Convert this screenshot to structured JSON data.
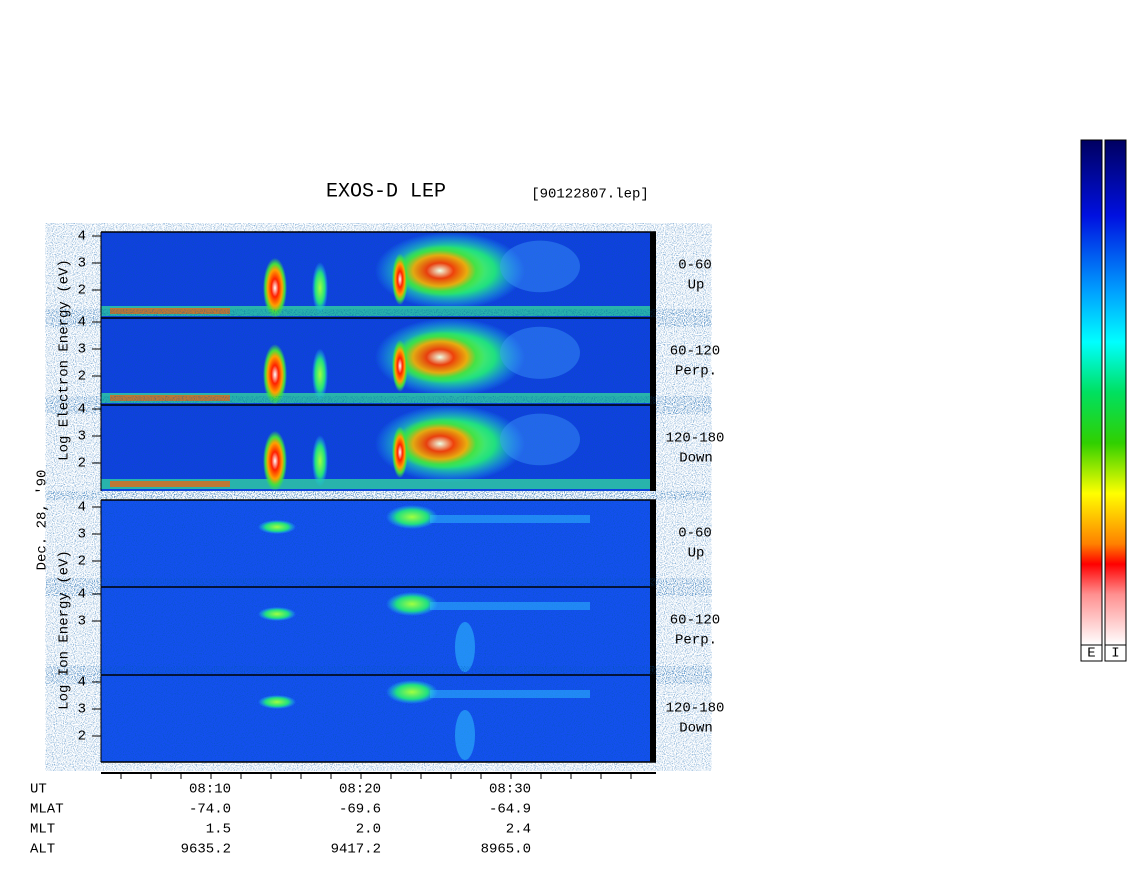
{
  "header": {
    "title": "EXOS-D LEP",
    "file": "[90122807.lep]"
  },
  "date": "Dec. 28, '90",
  "electron_axis_label": "Log  Electron  Energy (eV)",
  "ion_axis_label": "Log  Ion  Energy (eV)",
  "panels": [
    {
      "ticks": [
        "4",
        "3",
        "2"
      ],
      "angle": "0-60",
      "direction": "Up"
    },
    {
      "ticks": [
        "4",
        "3",
        "2"
      ],
      "angle": "60-120",
      "direction": "Perp."
    },
    {
      "ticks": [
        "4",
        "3",
        "2"
      ],
      "angle": "120-180",
      "direction": "Down"
    },
    {
      "ticks": [
        "4",
        "3",
        "2"
      ],
      "angle": "0-60",
      "direction": "Up"
    },
    {
      "ticks": [
        "4",
        "3"
      ],
      "angle": "60-120",
      "direction": "Perp."
    },
    {
      "ticks": [
        "4",
        "3",
        "2"
      ],
      "angle": "120-180",
      "direction": "Down"
    }
  ],
  "ephemeris": [
    {
      "label": "UT",
      "values": [
        "08:10",
        "08:20",
        "08:30"
      ]
    },
    {
      "label": "MLAT",
      "values": [
        "-74.0",
        "-69.6",
        "-64.9"
      ]
    },
    {
      "label": "MLT",
      "values": [
        "1.5",
        "2.0",
        "2.4"
      ]
    },
    {
      "label": "ALT",
      "values": [
        "9635.2",
        "9417.2",
        "8965.0"
      ]
    }
  ],
  "colorbars": [
    "E",
    "I"
  ]
}
